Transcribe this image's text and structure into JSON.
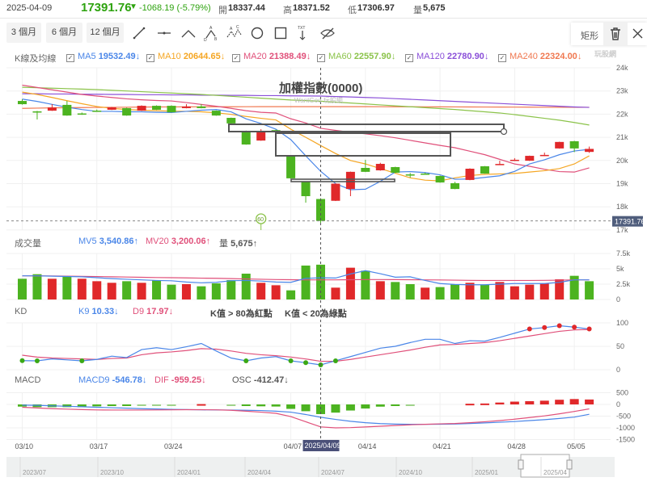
{
  "header": {
    "date": "2025-04-09",
    "price": "17391.76",
    "change": "-1068.19 (-5.79%)",
    "open_label": "開",
    "open": "18337.44",
    "high_label": "高",
    "high": "18371.52",
    "low_label": "低",
    "low": "17306.97",
    "vol_label": "量",
    "vol": "5,675",
    "price_color": "#2ea30f"
  },
  "toolbar": {
    "ranges": [
      "3 個月",
      "6 個月",
      "12 個月"
    ],
    "tools": [
      "line-tool-icon",
      "horizontal-line-tool-icon",
      "angle-tool-icon",
      "abd-pattern-tool-icon",
      "abcd-pattern-tool-icon",
      "circle-tool-icon",
      "rectangle-tool-icon",
      "text-tool-icon",
      "hide-drawings-icon"
    ]
  },
  "drawing_panel": {
    "label": "矩形",
    "delete_icon": "trash-icon",
    "close_icon": "close-icon"
  },
  "logo": "玩股網",
  "ma_legend": {
    "title": "K線及均線",
    "items": [
      {
        "label": "MA5",
        "value": "19532.49",
        "arrow": "↓",
        "color": "#4a86e8"
      },
      {
        "label": "MA10",
        "value": "20644.65",
        "arrow": "↓",
        "color": "#f5a623"
      },
      {
        "label": "MA20",
        "value": "21388.49",
        "arrow": "↓",
        "color": "#e0507a"
      },
      {
        "label": "MA60",
        "value": "22557.90",
        "arrow": "↓",
        "color": "#8bc34a"
      },
      {
        "label": "MA120",
        "value": "22780.90",
        "arrow": "↓",
        "color": "#8a4fd8"
      },
      {
        "label": "MA240",
        "value": "22324.00",
        "arrow": "↓",
        "color": "#f07850"
      }
    ]
  },
  "main_chart": {
    "title": "加權指數(0000)",
    "watermark": "WantGoo 玩股網",
    "y_ticks": [
      "24k",
      "23k",
      "22k",
      "21k",
      "20k",
      "19k",
      "18k",
      "17k"
    ],
    "y_tick_values": [
      24000,
      23000,
      22000,
      21000,
      20000,
      19000,
      18000,
      17000
    ],
    "last_price_tag": "17391.76",
    "marker_label": "60",
    "up_color": "#e0282a",
    "down_color": "#4cb320",
    "candles": [
      [
        "03/10",
        22570,
        22640,
        22410,
        22430
      ],
      [
        "03/11",
        22120,
        22140,
        21770,
        22080
      ],
      [
        "03/12",
        22150,
        22430,
        22140,
        22290
      ],
      [
        "03/13",
        22400,
        22570,
        21930,
        21940
      ],
      [
        "03/14",
        22030,
        22070,
        21970,
        22000
      ],
      [
        "03/17",
        22150,
        22200,
        22100,
        22120
      ],
      [
        "03/18",
        22190,
        22310,
        22180,
        22290
      ],
      [
        "03/19",
        22260,
        22280,
        21930,
        21940
      ],
      [
        "03/20",
        22150,
        22380,
        22140,
        22360
      ],
      [
        "03/21",
        22360,
        22380,
        22180,
        22190
      ],
      [
        "03/24",
        22360,
        22380,
        22070,
        22080
      ],
      [
        "03/25",
        22260,
        22430,
        22250,
        22330
      ],
      [
        "03/26",
        22330,
        22430,
        22250,
        22260
      ],
      [
        "03/27",
        22150,
        22160,
        21930,
        21940
      ],
      [
        "03/28",
        21840,
        21850,
        21590,
        21600
      ],
      [
        "03/31",
        21280,
        21290,
        20680,
        20690
      ],
      [
        "04/01",
        20860,
        21350,
        20850,
        21280
      ],
      [
        "04/02",
        21310,
        21330,
        21270,
        21290
      ],
      [
        "04/07",
        20170,
        20180,
        19220,
        19230
      ],
      [
        "04/08",
        19090,
        19100,
        18180,
        18460
      ],
      [
        "04/09",
        18337.44,
        18371.52,
        17306.97,
        17391.76
      ],
      [
        "04/10",
        18260,
        19010,
        18250,
        19000
      ],
      [
        "04/11",
        18770,
        19520,
        18460,
        19510
      ],
      [
        "04/14",
        19680,
        20030,
        19500,
        19510
      ],
      [
        "04/15",
        19575,
        19900,
        19560,
        19854
      ],
      [
        "04/16",
        19715,
        19730,
        19460,
        19470
      ],
      [
        "04/17",
        19400,
        19460,
        19260,
        19365
      ],
      [
        "04/18",
        19435,
        19480,
        19390,
        19400
      ],
      [
        "04/21",
        19330,
        19350,
        19040,
        19050
      ],
      [
        "04/22",
        19020,
        19080,
        18760,
        18770
      ],
      [
        "04/23",
        19160,
        19660,
        19150,
        19645
      ],
      [
        "04/24",
        19750,
        19760,
        19430,
        19435
      ],
      [
        "04/25",
        19820,
        19990,
        19810,
        19850
      ],
      [
        "04/28",
        19990,
        20100,
        19980,
        20030
      ],
      [
        "04/29",
        19990,
        20210,
        19980,
        20200
      ],
      [
        "04/30",
        20200,
        20340,
        20190,
        20240
      ],
      [
        "05/02",
        20520,
        20810,
        20510,
        20800
      ],
      [
        "05/05",
        20830,
        20850,
        20360,
        20520
      ],
      [
        "05/06",
        20370,
        20600,
        20330,
        20500
      ]
    ],
    "ma": {
      "MA5": [
        22650,
        22550,
        22420,
        22300,
        22200,
        22120,
        22120,
        22100,
        22100,
        22080,
        22070,
        22120,
        22170,
        22200,
        22100,
        21800,
        21600,
        21350,
        20900,
        20200,
        19532,
        19000,
        18740,
        18760,
        19100,
        19500,
        19520,
        19480,
        19380,
        19190,
        19200,
        19270,
        19340,
        19530,
        19850,
        20030,
        20250,
        20410,
        20480
      ],
      "MA10": [
        22950,
        22850,
        22720,
        22580,
        22450,
        22330,
        22250,
        22200,
        22170,
        22150,
        22130,
        22120,
        22100,
        22060,
        21990,
        21900,
        21820,
        21750,
        21350,
        21000,
        20645,
        20300,
        20000,
        19850,
        19650,
        19450,
        19250,
        19150,
        19120,
        19250,
        19350,
        19400,
        19420,
        19440,
        19500,
        19560,
        19650,
        19850,
        20200
      ],
      "MA20": [
        23250,
        23150,
        23050,
        22950,
        22850,
        22780,
        22720,
        22660,
        22620,
        22590,
        22570,
        22500,
        22420,
        22340,
        22250,
        22150,
        22080,
        22050,
        21800,
        21620,
        21388,
        21300,
        21220,
        21150,
        21070,
        20980,
        20870,
        20760,
        20650,
        20550,
        20400,
        20250,
        20050,
        19850,
        19750,
        19620,
        19520,
        19500,
        19680
      ],
      "MA60": [
        23160,
        23140,
        23120,
        23100,
        23080,
        23060,
        23030,
        23000,
        22970,
        22940,
        22910,
        22880,
        22850,
        22810,
        22770,
        22730,
        22690,
        22650,
        22610,
        22585,
        22558,
        22520,
        22480,
        22440,
        22400,
        22360,
        22320,
        22280,
        22240,
        22200,
        22150,
        22100,
        22050,
        21980,
        21900,
        21820,
        21740,
        21640,
        21530
      ],
      "MA120": [
        22880,
        22880,
        22870,
        22870,
        22860,
        22860,
        22850,
        22850,
        22840,
        22840,
        22830,
        22830,
        22820,
        22820,
        22810,
        22810,
        22800,
        22800,
        22790,
        22785,
        22781,
        22760,
        22740,
        22720,
        22700,
        22670,
        22640,
        22610,
        22580,
        22550,
        22520,
        22490,
        22460,
        22430,
        22400,
        22370,
        22340,
        22310,
        22290
      ],
      "MA240": [
        22250,
        22260,
        22270,
        22280,
        22285,
        22290,
        22295,
        22300,
        22305,
        22310,
        22312,
        22315,
        22317,
        22319,
        22320,
        22321,
        22322,
        22323,
        22324,
        22324,
        22324,
        22324,
        22323,
        22322,
        22321,
        22320,
        22318,
        22316,
        22314,
        22312,
        22310,
        22308,
        22306,
        22304,
        22302,
        22300,
        22298,
        22296,
        22294
      ]
    }
  },
  "volume": {
    "title": "成交量",
    "legend": [
      {
        "label": "MV5",
        "value": "3,540.86",
        "arrow": "↑",
        "color": "#4a86e8"
      },
      {
        "label": "MV20",
        "value": "3,200.06",
        "arrow": "↑",
        "color": "#e0507a"
      },
      {
        "label": "量",
        "value": "5,675",
        "arrow": "↑",
        "color": "#555"
      }
    ],
    "y_ticks": [
      "7.5k",
      "5k",
      "2.5k",
      "0"
    ],
    "y_tick_values": [
      7500,
      5000,
      2500,
      0
    ],
    "bars_k": [
      3.38,
      4.12,
      3.38,
      3.73,
      3.38,
      2.98,
      2.72,
      2.98,
      2.72,
      3.16,
      2.41,
      2.5,
      2.15,
      2.63,
      3.16,
      4.21,
      2.72,
      2.32,
      1.49,
      5.53,
      5.675,
      1.93,
      5.18,
      4.69,
      2.98,
      2.85,
      2.5,
      1.93,
      2.02,
      2.5,
      2.72,
      2.41,
      2.85,
      2.15,
      2.41,
      2.63,
      3.29,
      3.86,
      2.98
    ],
    "bars_up": [
      0,
      0,
      1,
      0,
      1,
      1,
      1,
      0,
      1,
      0,
      0,
      1,
      0,
      0,
      0,
      0,
      1,
      1,
      0,
      0,
      0,
      1,
      1,
      0,
      1,
      0,
      0,
      1,
      0,
      0,
      1,
      0,
      1,
      1,
      1,
      1,
      1,
      0,
      0
    ],
    "MV5": [
      3.86,
      3.86,
      3.8,
      3.75,
      3.7,
      3.55,
      3.4,
      3.3,
      3.2,
      3.1,
      3.05,
      2.85,
      2.72,
      2.8,
      3.07,
      3.1,
      3.0,
      2.85,
      2.8,
      3.45,
      3.54,
      3.5,
      4.16,
      4.7,
      4.2,
      3.64,
      3.7,
      3.1,
      2.6,
      2.45,
      2.4,
      2.4,
      2.5,
      2.6,
      2.6,
      2.6,
      2.8,
      3.2,
      3.2
    ],
    "MV20": [
      3.86,
      3.85,
      3.83,
      3.8,
      3.77,
      3.74,
      3.7,
      3.66,
      3.62,
      3.58,
      3.55,
      3.52,
      3.48,
      3.45,
      3.4,
      3.35,
      3.3,
      3.25,
      3.22,
      3.2,
      3.2,
      3.2,
      3.22,
      3.25,
      3.25,
      3.24,
      3.22,
      3.2,
      3.18,
      3.15,
      3.12,
      3.1,
      3.1,
      3.1,
      3.1,
      3.12,
      3.15,
      3.2,
      3.2
    ]
  },
  "kd": {
    "title": "KD",
    "legend": [
      {
        "label": "K9",
        "value": "10.33",
        "arrow": "↓",
        "color": "#4a86e8"
      },
      {
        "label": "D9",
        "value": "17.97",
        "arrow": "↓",
        "color": "#e0507a"
      },
      {
        "label": "",
        "value": "K值 > 80為紅點",
        "arrow": "",
        "color": "#444"
      },
      {
        "label": "",
        "value": "K值 < 20為綠點",
        "arrow": "",
        "color": "#444"
      }
    ],
    "y_ticks": [
      "100",
      "50",
      "0"
    ],
    "y_tick_values": [
      100,
      50,
      0
    ],
    "K": [
      19.4,
      19,
      23,
      21,
      19,
      22,
      29,
      26,
      43,
      47,
      43,
      49,
      56,
      40,
      25,
      19,
      25,
      28,
      19,
      15,
      10.33,
      19,
      28,
      37,
      46,
      50,
      58,
      65,
      65,
      56,
      62,
      61,
      69,
      78,
      87,
      90,
      94,
      91,
      87
    ],
    "D": [
      31,
      27,
      25,
      24,
      23,
      22,
      24,
      25,
      32,
      36,
      38,
      41,
      45,
      44,
      40,
      35,
      32,
      30,
      27,
      23,
      17.97,
      18,
      22,
      27,
      32,
      37,
      42,
      48,
      53,
      54,
      56,
      58,
      62,
      67,
      72,
      77,
      82,
      85,
      86
    ]
  },
  "macd": {
    "title": "MACD",
    "legend": [
      {
        "label": "MACD9",
        "value": "-546.78",
        "arrow": "↓",
        "color": "#4a86e8"
      },
      {
        "label": "DIF",
        "value": "-959.25",
        "arrow": "↓",
        "color": "#e0507a"
      },
      {
        "label": "OSC",
        "value": "-412.47",
        "arrow": "↓",
        "color": "#555"
      }
    ],
    "y_ticks": [
      "500",
      "0",
      "-500",
      "-1000",
      "-1500"
    ],
    "y_tick_values": [
      500,
      0,
      -500,
      -1000,
      -1500
    ],
    "MACD9": [
      -30,
      -40,
      -60,
      -80,
      -100,
      -120,
      -140,
      -160,
      -180,
      -195,
      -210,
      -220,
      -230,
      -235,
      -240,
      -250,
      -260,
      -290,
      -330,
      -430,
      -546.78,
      -640,
      -720,
      -780,
      -820,
      -840,
      -850,
      -850,
      -845,
      -835,
      -815,
      -790,
      -760,
      -730,
      -690,
      -650,
      -600,
      -540,
      -420
    ],
    "DIF": [
      -120,
      -150,
      -180,
      -200,
      -220,
      -235,
      -240,
      -240,
      -240,
      -235,
      -230,
      -225,
      -225,
      -230,
      -250,
      -290,
      -330,
      -380,
      -520,
      -740,
      -959.25,
      -1000,
      -990,
      -960,
      -930,
      -900,
      -870,
      -850,
      -830,
      -815,
      -780,
      -740,
      -690,
      -630,
      -560,
      -490,
      -400,
      -300,
      -190
    ],
    "OSC": [
      -93,
      -116,
      -116,
      -116,
      -116,
      -80,
      -60,
      -50,
      -30,
      -20,
      -15,
      0,
      15,
      0,
      -15,
      -60,
      -80,
      -90,
      -190,
      -290,
      -412.47,
      -350,
      -260,
      -175,
      -95,
      -50,
      -25,
      0,
      0,
      0,
      30,
      40,
      80,
      120,
      140,
      160,
      200,
      230,
      210
    ]
  },
  "x_axis": {
    "ticks": [
      [
        "03/10",
        0
      ],
      [
        "03/17",
        5
      ],
      [
        "03/24",
        10
      ],
      [
        "04/07",
        18
      ],
      [
        "04/14",
        23
      ],
      [
        "04/21",
        28
      ],
      [
        "04/28",
        33
      ],
      [
        "05/05",
        37
      ]
    ],
    "crosshair_label": "2025/04/09",
    "crosshair_index": 20
  },
  "navigator": {
    "labels": [
      "2023/07",
      "2023/10",
      "2024/01",
      "2024/04",
      "2024/07",
      "2024/10",
      "2025/01",
      "2025/04"
    ]
  }
}
